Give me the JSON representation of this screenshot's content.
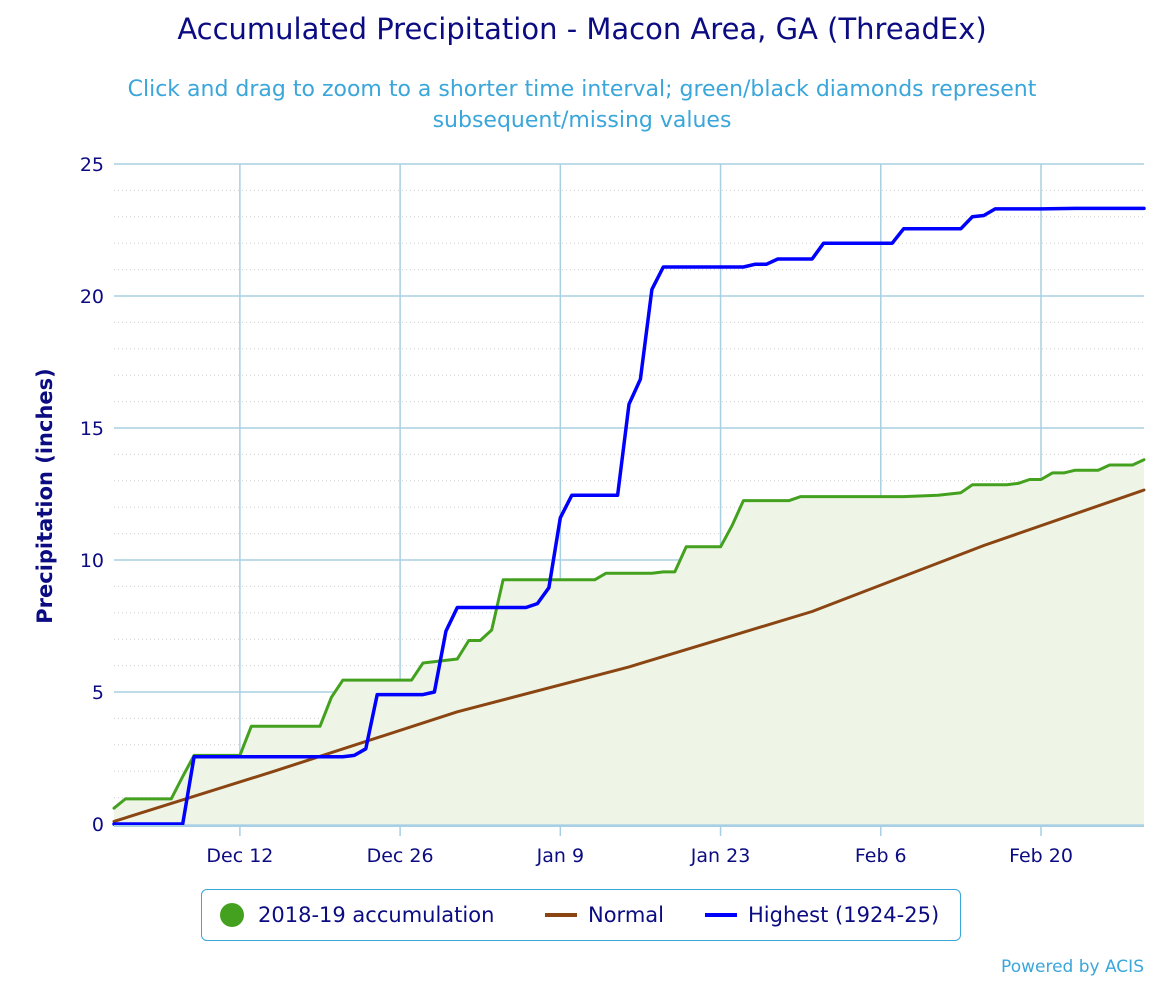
{
  "title": "Accumulated Precipitation - Macon Area, GA (ThreadEx)",
  "subtitle": "Click and drag to zoom to a shorter time interval; green/black diamonds represent subsequent/missing values",
  "credits": "Powered by ACIS",
  "colors": {
    "accumulation": "#44a11f",
    "accumulation_fill": "#eef5e6",
    "normal": "#8b4513",
    "highest": "#0000ff",
    "grid": "#a9cfe3",
    "text": "#0b0b82"
  },
  "chart_data": {
    "type": "line",
    "title": "Accumulated Precipitation - Macon Area, GA (ThreadEx)",
    "ylabel": "Precipitation (inches)",
    "xlabel": "",
    "x_range": [
      "2018-12-01",
      "2019-02-28"
    ],
    "ylim": [
      0,
      25
    ],
    "yticks": [
      0,
      5,
      10,
      15,
      20,
      25
    ],
    "xticks": [
      {
        "date": "2018-12-12",
        "label": "Dec 12"
      },
      {
        "date": "2018-12-26",
        "label": "Dec 26"
      },
      {
        "date": "2019-01-09",
        "label": "Jan 9"
      },
      {
        "date": "2019-01-23",
        "label": "Jan 23"
      },
      {
        "date": "2019-02-06",
        "label": "Feb 6"
      },
      {
        "date": "2019-02-20",
        "label": "Feb 20"
      }
    ],
    "grid": true,
    "legend_position": "bottom",
    "series": [
      {
        "name": "2018-19 accumulation",
        "type": "area",
        "color": "#44a11f",
        "points": [
          [
            "2018-12-01",
            0.6
          ],
          [
            "2018-12-02",
            0.95
          ],
          [
            "2018-12-06",
            0.95
          ],
          [
            "2018-12-07",
            1.8
          ],
          [
            "2018-12-08",
            2.6
          ],
          [
            "2018-12-12",
            2.6
          ],
          [
            "2018-12-13",
            3.7
          ],
          [
            "2018-12-19",
            3.7
          ],
          [
            "2018-12-20",
            4.8
          ],
          [
            "2018-12-21",
            5.45
          ],
          [
            "2018-12-27",
            5.45
          ],
          [
            "2018-12-28",
            6.1
          ],
          [
            "2018-12-31",
            6.25
          ],
          [
            "2019-01-01",
            6.95
          ],
          [
            "2019-01-02",
            6.95
          ],
          [
            "2019-01-03",
            7.35
          ],
          [
            "2019-01-04",
            9.25
          ],
          [
            "2019-01-12",
            9.25
          ],
          [
            "2019-01-13",
            9.5
          ],
          [
            "2019-01-17",
            9.5
          ],
          [
            "2019-01-18",
            9.55
          ],
          [
            "2019-01-19",
            9.55
          ],
          [
            "2019-01-20",
            10.5
          ],
          [
            "2019-01-23",
            10.5
          ],
          [
            "2019-01-24",
            11.3
          ],
          [
            "2019-01-25",
            12.25
          ],
          [
            "2019-01-29",
            12.25
          ],
          [
            "2019-01-30",
            12.4
          ],
          [
            "2019-02-08",
            12.4
          ],
          [
            "2019-02-11",
            12.45
          ],
          [
            "2019-02-13",
            12.55
          ],
          [
            "2019-02-14",
            12.85
          ],
          [
            "2019-02-17",
            12.85
          ],
          [
            "2019-02-18",
            12.9
          ],
          [
            "2019-02-19",
            13.05
          ],
          [
            "2019-02-20",
            13.05
          ],
          [
            "2019-02-21",
            13.3
          ],
          [
            "2019-02-22",
            13.3
          ],
          [
            "2019-02-23",
            13.4
          ],
          [
            "2019-02-25",
            13.4
          ],
          [
            "2019-02-26",
            13.6
          ],
          [
            "2019-02-28",
            13.6
          ],
          [
            "2019-03-01",
            13.8
          ]
        ]
      },
      {
        "name": "Normal",
        "type": "line",
        "color": "#8b4513",
        "points": [
          [
            "2018-12-01",
            0.1
          ],
          [
            "2018-12-15",
            2.0
          ],
          [
            "2018-12-31",
            4.25
          ],
          [
            "2019-01-15",
            5.95
          ],
          [
            "2019-01-31",
            8.05
          ],
          [
            "2019-02-15",
            10.55
          ],
          [
            "2019-03-01",
            12.65
          ]
        ]
      },
      {
        "name": "Highest (1924-25)",
        "type": "line",
        "color": "#0000ff",
        "points": [
          [
            "2018-12-01",
            0.0
          ],
          [
            "2018-12-07",
            0.0
          ],
          [
            "2018-12-08",
            2.55
          ],
          [
            "2018-12-21",
            2.55
          ],
          [
            "2018-12-22",
            2.6
          ],
          [
            "2018-12-23",
            2.85
          ],
          [
            "2018-12-24",
            4.9
          ],
          [
            "2018-12-28",
            4.9
          ],
          [
            "2018-12-29",
            5.0
          ],
          [
            "2018-12-30",
            7.3
          ],
          [
            "2018-12-31",
            8.2
          ],
          [
            "2019-01-06",
            8.2
          ],
          [
            "2019-01-07",
            8.35
          ],
          [
            "2019-01-08",
            8.95
          ],
          [
            "2019-01-09",
            11.6
          ],
          [
            "2019-01-10",
            12.45
          ],
          [
            "2019-01-14",
            12.45
          ],
          [
            "2019-01-15",
            15.9
          ],
          [
            "2019-01-16",
            16.85
          ],
          [
            "2019-01-17",
            20.25
          ],
          [
            "2019-01-18",
            21.1
          ],
          [
            "2019-01-25",
            21.1
          ],
          [
            "2019-01-26",
            21.2
          ],
          [
            "2019-01-27",
            21.2
          ],
          [
            "2019-01-28",
            21.4
          ],
          [
            "2019-01-31",
            21.4
          ],
          [
            "2019-02-01",
            22.0
          ],
          [
            "2019-02-07",
            22.0
          ],
          [
            "2019-02-08",
            22.55
          ],
          [
            "2019-02-13",
            22.55
          ],
          [
            "2019-02-14",
            23.0
          ],
          [
            "2019-02-15",
            23.05
          ],
          [
            "2019-02-16",
            23.3
          ],
          [
            "2019-02-20",
            23.3
          ],
          [
            "2019-02-23",
            23.32
          ],
          [
            "2019-03-01",
            23.32
          ]
        ]
      }
    ]
  }
}
